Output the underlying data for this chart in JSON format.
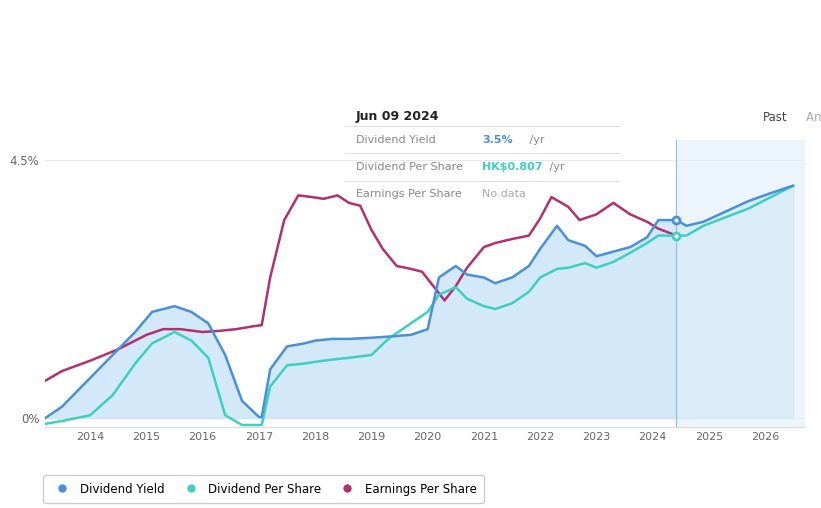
{
  "tooltip_date": "Jun 09 2024",
  "tooltip_dy": "3.5%",
  "tooltip_dps": "HK$0.807",
  "tooltip_eps": "No data",
  "bg_color": "#ffffff",
  "plot_bg": "#ffffff",
  "past_fill_color": "#cce4f7",
  "forecast_fill_color": "#ddeefa",
  "div_yield_color": "#4a90d9",
  "div_per_share_color": "#3ecfc0",
  "earnings_per_share_color": "#b03070",
  "legend_items": [
    "Dividend Yield",
    "Dividend Per Share",
    "Earnings Per Share"
  ],
  "x_min": 2013.2,
  "x_max": 2026.7,
  "y_min": -0.15,
  "y_max": 4.85,
  "past_boundary": 2024.42,
  "div_yield_x": [
    2013.2,
    2013.5,
    2014.0,
    2014.4,
    2014.8,
    2015.1,
    2015.5,
    2015.8,
    2016.1,
    2016.4,
    2016.7,
    2017.0,
    2017.05,
    2017.2,
    2017.5,
    2017.8,
    2018.0,
    2018.3,
    2018.6,
    2019.0,
    2019.3,
    2019.7,
    2020.0,
    2020.2,
    2020.5,
    2020.7,
    2021.0,
    2021.2,
    2021.5,
    2021.8,
    2022.0,
    2022.3,
    2022.5,
    2022.8,
    2023.0,
    2023.3,
    2023.6,
    2023.9,
    2024.1,
    2024.42,
    2024.6,
    2024.9,
    2025.3,
    2025.7,
    2026.1,
    2026.5
  ],
  "div_yield_y": [
    0.0,
    0.2,
    0.7,
    1.1,
    1.5,
    1.85,
    1.95,
    1.85,
    1.65,
    1.1,
    0.3,
    0.02,
    0.02,
    0.85,
    1.25,
    1.3,
    1.35,
    1.38,
    1.38,
    1.4,
    1.42,
    1.45,
    1.55,
    2.45,
    2.65,
    2.5,
    2.45,
    2.35,
    2.45,
    2.65,
    2.95,
    3.35,
    3.1,
    3.0,
    2.82,
    2.9,
    2.98,
    3.15,
    3.45,
    3.45,
    3.35,
    3.42,
    3.6,
    3.78,
    3.92,
    4.05
  ],
  "div_ps_x": [
    2013.2,
    2013.5,
    2014.0,
    2014.4,
    2014.8,
    2015.1,
    2015.5,
    2015.8,
    2016.1,
    2016.4,
    2016.7,
    2017.0,
    2017.05,
    2017.2,
    2017.5,
    2017.8,
    2018.0,
    2018.3,
    2018.6,
    2019.0,
    2019.3,
    2019.7,
    2020.0,
    2020.2,
    2020.5,
    2020.7,
    2021.0,
    2021.2,
    2021.5,
    2021.8,
    2022.0,
    2022.3,
    2022.5,
    2022.8,
    2023.0,
    2023.3,
    2023.6,
    2023.9,
    2024.1,
    2024.42,
    2024.6,
    2024.9,
    2025.3,
    2025.7,
    2026.1,
    2026.5
  ],
  "div_ps_y": [
    -0.1,
    -0.05,
    0.05,
    0.4,
    0.95,
    1.3,
    1.5,
    1.35,
    1.05,
    0.05,
    -0.12,
    -0.12,
    -0.12,
    0.55,
    0.92,
    0.95,
    0.98,
    1.02,
    1.05,
    1.1,
    1.38,
    1.65,
    1.85,
    2.15,
    2.28,
    2.08,
    1.95,
    1.9,
    2.0,
    2.2,
    2.45,
    2.6,
    2.62,
    2.7,
    2.62,
    2.72,
    2.88,
    3.05,
    3.18,
    3.18,
    3.18,
    3.35,
    3.5,
    3.65,
    3.85,
    4.05
  ],
  "eps_x": [
    2013.2,
    2013.5,
    2014.0,
    2014.5,
    2015.0,
    2015.3,
    2015.6,
    2016.0,
    2016.3,
    2016.6,
    2016.9,
    2017.05,
    2017.2,
    2017.45,
    2017.7,
    2017.95,
    2018.15,
    2018.4,
    2018.6,
    2018.8,
    2019.0,
    2019.2,
    2019.45,
    2019.7,
    2019.9,
    2020.1,
    2020.3,
    2020.5,
    2020.7,
    2021.0,
    2021.2,
    2021.5,
    2021.8,
    2022.0,
    2022.2,
    2022.5,
    2022.7,
    2023.0,
    2023.3,
    2023.6,
    2023.9,
    2024.1,
    2024.42
  ],
  "eps_y": [
    0.65,
    0.82,
    1.0,
    1.2,
    1.45,
    1.55,
    1.55,
    1.5,
    1.52,
    1.55,
    1.6,
    1.62,
    2.45,
    3.45,
    3.88,
    3.85,
    3.82,
    3.88,
    3.75,
    3.7,
    3.28,
    2.95,
    2.65,
    2.6,
    2.55,
    2.3,
    2.05,
    2.3,
    2.62,
    2.98,
    3.05,
    3.12,
    3.18,
    3.48,
    3.85,
    3.68,
    3.45,
    3.55,
    3.75,
    3.55,
    3.42,
    3.3,
    3.18
  ]
}
